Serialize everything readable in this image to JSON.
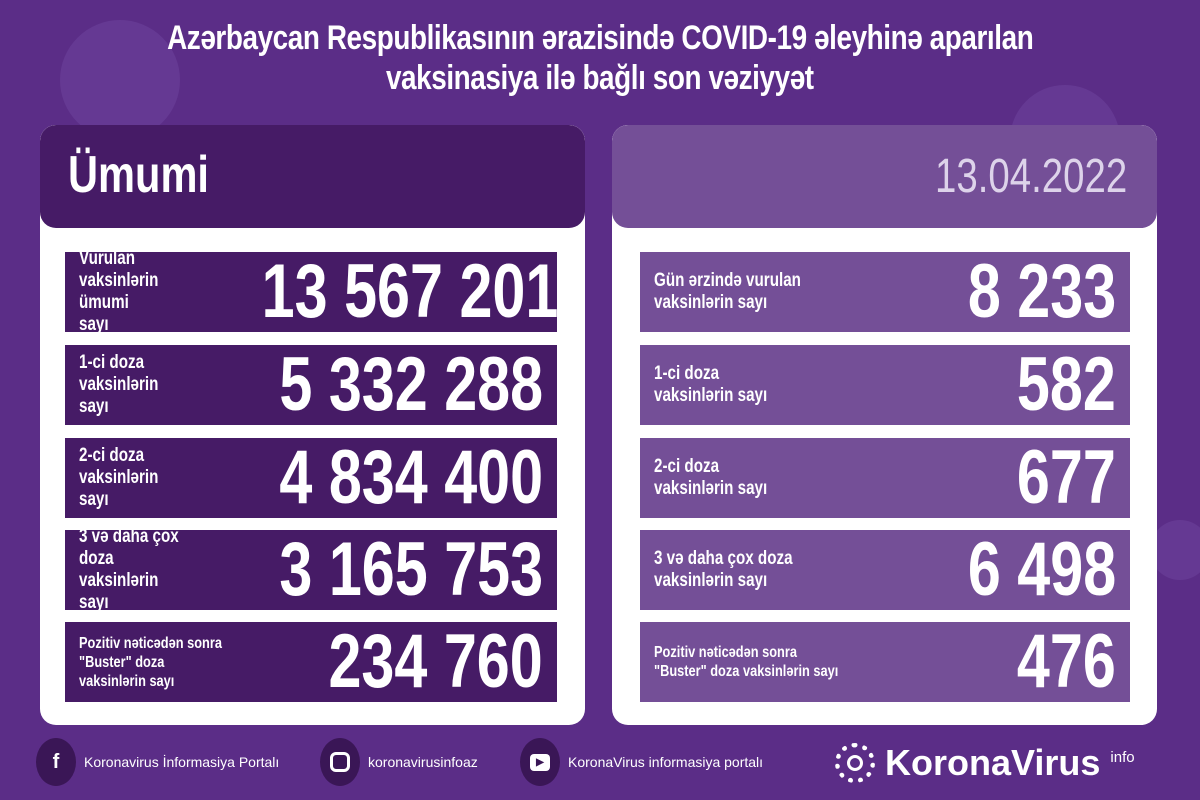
{
  "title": {
    "line1": "Azərbaycan Respublikasının ərazisində COVID-19 əleyhinə aparılan",
    "line2": "vaksinasiya ilə bağlı son vəziyyət"
  },
  "total": {
    "header": "Ümumi",
    "rows": [
      {
        "label": "Vurulan vaksinlərin\nümumi sayı",
        "value": "13 567 201"
      },
      {
        "label": "1-ci doza\nvaksinlərin sayı",
        "value": "5 332 288"
      },
      {
        "label": "2-ci doza\nvaksinlərin sayı",
        "value": "4 834 400"
      },
      {
        "label": "3 və daha çox doza\nvaksinlərin sayı",
        "value": "3 165 753"
      },
      {
        "label": "Pozitiv nəticədən sonra\n\"Buster\" doza vaksinlərin sayı",
        "value": "234 760"
      }
    ]
  },
  "daily": {
    "date": "13.04.2022",
    "rows": [
      {
        "label": "Gün ərzində vurulan\nvaksinlərin sayı",
        "value": "8 233"
      },
      {
        "label": "1-ci doza\nvaksinlərin sayı",
        "value": "582"
      },
      {
        "label": "2-ci doza\nvaksinlərin sayı",
        "value": "677"
      },
      {
        "label": "3 və daha çox doza\nvaksinlərin sayı",
        "value": "6 498"
      },
      {
        "label": "Pozitiv nəticədən sonra\n\"Buster\" doza vaksinlərin sayı",
        "value": "476"
      }
    ]
  },
  "footer": {
    "facebook": "Koronavirus İnformasiya Portalı",
    "instagram": "koronavirusinfoaz",
    "youtube": "KoronaVirus informasiya portalı",
    "logo": "KoronaVirus",
    "logo_sup": "info"
  },
  "colors": {
    "background": "#5b2d87",
    "dark_panel": "#461b66",
    "light_panel": "#744f97"
  }
}
